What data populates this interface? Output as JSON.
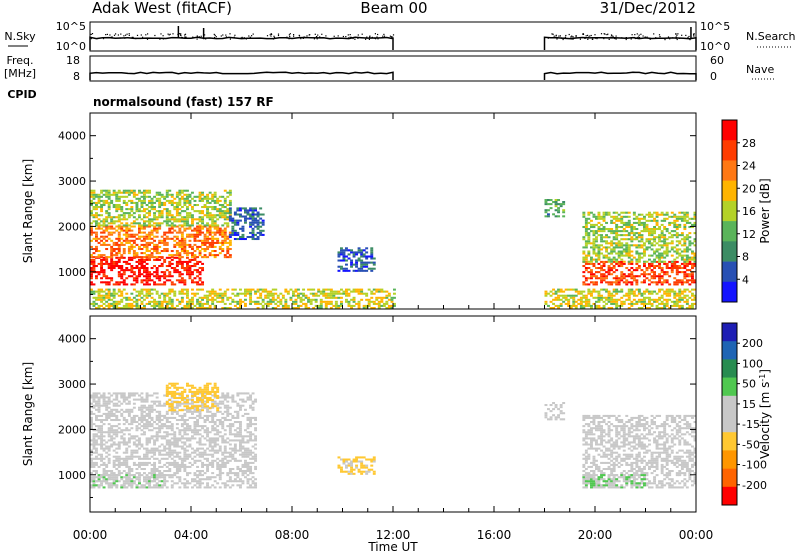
{
  "header": {
    "station": "Adak West (fitACF)",
    "beam": "Beam 00",
    "date": "31/Dec/2012"
  },
  "panels": {
    "nsky": {
      "left_label": "N.Sky",
      "left_ticks": [
        "10^5",
        "10^0"
      ],
      "right_label": "N.Search",
      "right_ticks": [
        "10^5",
        "10^0"
      ]
    },
    "freq": {
      "left_label_line1": "Freq.",
      "left_label_line2": "[MHz]",
      "left_ticks": [
        "18",
        "8"
      ],
      "right_label": "Nave",
      "right_ticks": [
        "60",
        "0"
      ],
      "cpid_label": "CPID",
      "mode": "normalsound (fast) 157 RF"
    },
    "power": {
      "ylabel": "Slant Range [km]",
      "yticks": [
        "4000",
        "3000",
        "2000",
        "1000"
      ],
      "colorbar_label": "Power [dB]",
      "colorbar_ticks": [
        "28",
        "24",
        "20",
        "16",
        "12",
        "8",
        "4"
      ],
      "colors": [
        "#1414ff",
        "#2850b4",
        "#3c8c64",
        "#5ab45a",
        "#b4d228",
        "#ffb400",
        "#ff7814",
        "#ff3c00",
        "#ff0000"
      ]
    },
    "velocity": {
      "ylabel": "Slant Range [km]",
      "yticks": [
        "4000",
        "3000",
        "2000",
        "1000"
      ],
      "colorbar_label": "Velocity [m s",
      "colorbar_label_sup": "-1",
      "colorbar_label_end": "]",
      "colorbar_ticks": [
        "200",
        "100",
        "50",
        "15",
        "-15",
        "-50",
        "-100",
        "-200"
      ],
      "colors": [
        "#ff0000",
        "#ff6400",
        "#ff9600",
        "#ffc832",
        "#c8c8c8",
        "#c8c8c8",
        "#50c850",
        "#288c50",
        "#1e64b4",
        "#1e1eb4"
      ]
    }
  },
  "xaxis": {
    "label": "Time UT",
    "ticks": [
      "00:00",
      "04:00",
      "08:00",
      "12:00",
      "16:00",
      "20:00",
      "00:00"
    ]
  },
  "chart_data": [
    {
      "type": "heatmap",
      "quantity": "power",
      "xlabel": "Time UT",
      "ylabel": "Slant Range [km]",
      "xlim": [
        0,
        24
      ],
      "ylim": [
        180,
        4500
      ],
      "clim": [
        0,
        30
      ],
      "data_gap_hours": [
        12,
        18
      ],
      "regions": [
        {
          "t": [
            0,
            4.5
          ],
          "range": [
            700,
            1300
          ],
          "value": 28
        },
        {
          "t": [
            0,
            5.5
          ],
          "range": [
            1300,
            2000
          ],
          "value": 22
        },
        {
          "t": [
            0,
            5.5
          ],
          "range": [
            2000,
            2800
          ],
          "value": 14
        },
        {
          "t": [
            5.5,
            6.8
          ],
          "range": [
            1700,
            2400
          ],
          "value": 6
        },
        {
          "t": [
            9.8,
            11.2
          ],
          "range": [
            1000,
            1500
          ],
          "value": 6
        },
        {
          "t": [
            18.0,
            18.8
          ],
          "range": [
            2200,
            2600
          ],
          "value": 10
        },
        {
          "t": [
            19.5,
            24.0
          ],
          "range": [
            700,
            1200
          ],
          "value": 25
        },
        {
          "t": [
            19.5,
            24.0
          ],
          "range": [
            1200,
            2300
          ],
          "value": 14
        },
        {
          "t": [
            0,
            12
          ],
          "range": [
            180,
            600
          ],
          "value": 16
        },
        {
          "t": [
            18,
            24
          ],
          "range": [
            180,
            600
          ],
          "value": 16
        }
      ]
    },
    {
      "type": "heatmap",
      "quantity": "velocity",
      "xlabel": "Time UT",
      "ylabel": "Slant Range [km]",
      "xlim": [
        0,
        24
      ],
      "ylim": [
        180,
        4500
      ],
      "clim": [
        -200,
        200
      ],
      "data_gap_hours": [
        12,
        18
      ],
      "regions": [
        {
          "t": [
            0,
            6.5
          ],
          "range": [
            700,
            2800
          ],
          "value": 0
        },
        {
          "t": [
            0,
            3
          ],
          "range": [
            700,
            1000
          ],
          "value": 30
        },
        {
          "t": [
            3,
            5
          ],
          "range": [
            2400,
            3000
          ],
          "value": -60
        },
        {
          "t": [
            9.8,
            11.2
          ],
          "range": [
            1000,
            1400
          ],
          "value": -50
        },
        {
          "t": [
            18,
            18.8
          ],
          "range": [
            2200,
            2600
          ],
          "value": 0
        },
        {
          "t": [
            19.5,
            24
          ],
          "range": [
            700,
            2300
          ],
          "value": 0
        },
        {
          "t": [
            19.5,
            22
          ],
          "range": [
            700,
            1000
          ],
          "value": 40
        }
      ]
    }
  ]
}
